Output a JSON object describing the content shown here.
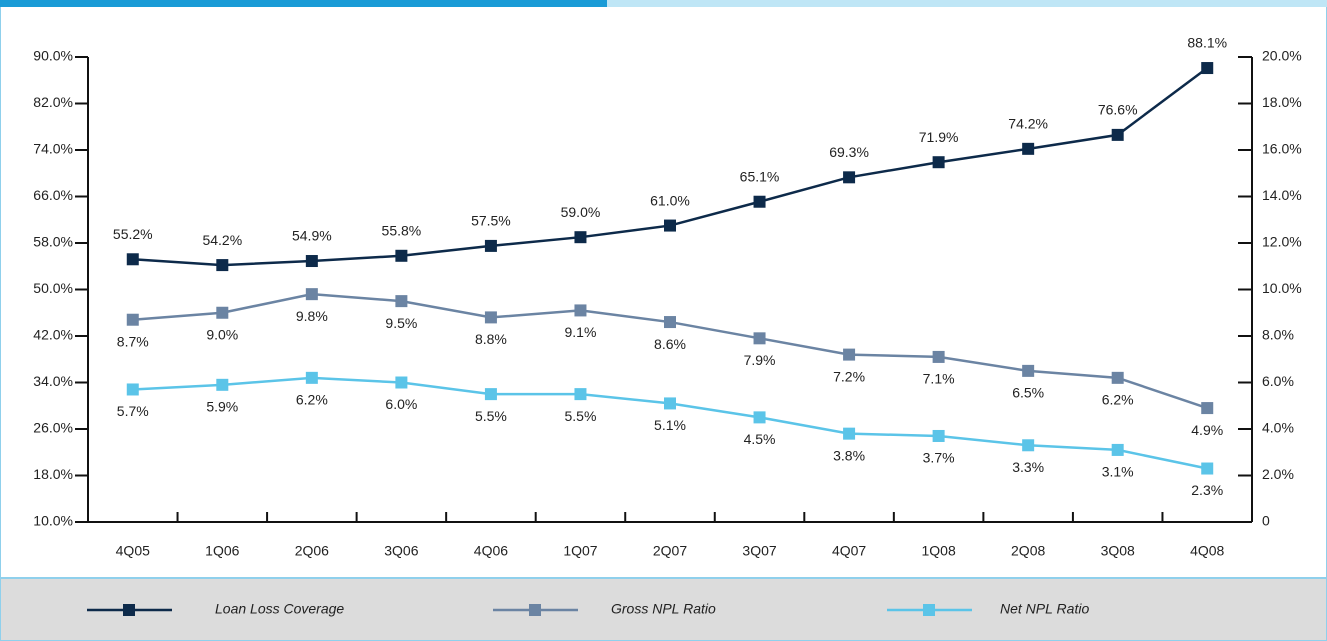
{
  "chart_data": {
    "type": "line",
    "categories": [
      "4Q05",
      "1Q06",
      "2Q06",
      "3Q06",
      "4Q06",
      "1Q07",
      "2Q07",
      "3Q07",
      "4Q07",
      "1Q08",
      "2Q08",
      "3Q08",
      "4Q08"
    ],
    "ylim": [
      10,
      90
    ],
    "yticks": [
      {
        "value": 10,
        "label": "10.0%"
      },
      {
        "value": 18,
        "label": "18.0%"
      },
      {
        "value": 26,
        "label": "26.0%"
      },
      {
        "value": 34,
        "label": "34.0%"
      },
      {
        "value": 42,
        "label": "42.0%"
      },
      {
        "value": 50,
        "label": "50.0%"
      },
      {
        "value": 58,
        "label": "58.0%"
      },
      {
        "value": 66,
        "label": "66.0%"
      },
      {
        "value": 74,
        "label": "74.0%"
      },
      {
        "value": 82,
        "label": "82.0%"
      },
      {
        "value": 90,
        "label": "90.0%"
      }
    ],
    "y2lim": [
      0,
      20
    ],
    "y2ticks": [
      0,
      {
        "value": 2,
        "label": "2.0%"
      },
      {
        "value": 4,
        "label": "4.0%"
      },
      {
        "value": 6,
        "label": "6.0%"
      },
      {
        "value": 8,
        "label": "8.0%"
      },
      {
        "value": 10,
        "label": "10.0%"
      },
      {
        "value": 12,
        "label": "12.0%"
      },
      {
        "value": 14,
        "label": "14.0%"
      },
      {
        "value": 16,
        "label": "16.0%"
      },
      {
        "value": 18,
        "label": "18.0%"
      },
      {
        "value": 20,
        "label": "20.0%"
      }
    ],
    "series": [
      {
        "name": "Loan Loss Coverage",
        "color": "#0d2a4a",
        "axis": "y",
        "values": [
          55.2,
          54.2,
          54.9,
          55.8,
          57.5,
          59.0,
          61.0,
          65.1,
          69.3,
          71.9,
          74.2,
          76.6,
          88.1
        ],
        "value_labels": [
          "55.2%",
          "54.2%",
          "54.9%",
          "55.8%",
          "57.5%",
          "59.0%",
          "61.0%",
          "65.1%",
          "69.3%",
          "71.9%",
          "74.2%",
          "76.6%",
          "88.1%"
        ]
      },
      {
        "name": "Gross NPL Ratio",
        "color": "#6b84a3",
        "axis": "y2",
        "values": [
          8.7,
          9.0,
          9.8,
          9.5,
          8.8,
          9.1,
          8.6,
          7.9,
          7.2,
          7.1,
          6.5,
          6.2,
          4.9
        ],
        "value_labels": [
          "8.7%",
          "9.0%",
          "9.8%",
          "9.5%",
          "8.8%",
          "9.1%",
          "8.6%",
          "7.9%",
          "7.2%",
          "7.1%",
          "6.5%",
          "6.2%",
          "4.9%"
        ]
      },
      {
        "name": "Net NPL Ratio",
        "color": "#5bc4e8",
        "axis": "y2",
        "values": [
          5.7,
          5.9,
          6.2,
          6.0,
          5.5,
          5.5,
          5.1,
          4.5,
          3.8,
          3.7,
          3.3,
          3.1,
          2.3
        ],
        "value_labels": [
          "5.7%",
          "5.9%",
          "6.2%",
          "6.0%",
          "5.5%",
          "5.5%",
          "5.1%",
          "4.5%",
          "3.8%",
          "3.7%",
          "3.3%",
          "3.1%",
          "2.3%"
        ]
      }
    ]
  }
}
